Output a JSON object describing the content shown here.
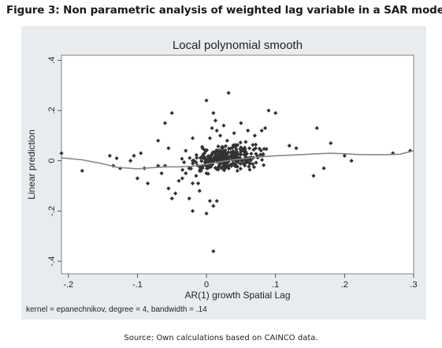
{
  "figure_caption": "Figure 3: Non parametric analysis of weighted lag variable in a SAR model",
  "source_note": "Source: Own calculations based on CAINCO data.",
  "colors": {
    "panel_bg": "#e9ecef",
    "plot_bg": "#ffffff",
    "points": "#333333",
    "smooth_line": "#888888"
  },
  "chart_data": {
    "type": "scatter",
    "title": "Local polynomial smooth",
    "xlabel": "AR(1) growth Spatial Lag",
    "ylabel": "Linear prediction",
    "note": "kernel = epanechnikov, degree = 4, bandwidth = .14",
    "xlim": [
      -0.21,
      0.3
    ],
    "ylim": [
      -0.45,
      0.42
    ],
    "x_ticks": [
      -0.2,
      -0.1,
      0,
      0.1,
      0.2,
      0.3
    ],
    "x_tick_labels": [
      "-.2",
      "-.1",
      "0",
      ".1",
      ".2",
      ".3"
    ],
    "y_ticks": [
      -0.4,
      -0.2,
      0,
      0.2,
      0.4
    ],
    "y_tick_labels": [
      "-.4",
      "-.2",
      "0",
      ".2",
      ".4"
    ],
    "grid": false,
    "legend": "none",
    "series": [
      {
        "type": "scatter",
        "points": [
          [
            -0.21,
            0.03
          ],
          [
            -0.18,
            -0.04
          ],
          [
            -0.14,
            0.02
          ],
          [
            -0.135,
            -0.02
          ],
          [
            -0.13,
            0.01
          ],
          [
            -0.125,
            -0.03
          ],
          [
            -0.11,
            0.0
          ],
          [
            -0.105,
            0.02
          ],
          [
            -0.1,
            -0.07
          ],
          [
            -0.095,
            0.03
          ],
          [
            -0.09,
            -0.03
          ],
          [
            -0.085,
            -0.09
          ],
          [
            -0.07,
            -0.02
          ],
          [
            -0.065,
            -0.05
          ],
          [
            -0.06,
            -0.02
          ],
          [
            -0.055,
            -0.11
          ],
          [
            -0.05,
            -0.15
          ],
          [
            -0.045,
            -0.13
          ],
          [
            -0.04,
            -0.08
          ],
          [
            -0.035,
            -0.07
          ],
          [
            -0.03,
            -0.05
          ],
          [
            -0.025,
            -0.03
          ],
          [
            -0.02,
            0.0
          ],
          [
            -0.015,
            -0.06
          ],
          [
            -0.012,
            -0.09
          ],
          [
            -0.01,
            -0.12
          ],
          [
            -0.008,
            -0.04
          ],
          [
            -0.005,
            -0.02
          ],
          [
            -0.003,
            0.03
          ],
          [
            0.0,
            -0.05
          ],
          [
            0.0,
            -0.21
          ],
          [
            -0.02,
            -0.2
          ],
          [
            0.005,
            -0.16
          ],
          [
            0.01,
            -0.18
          ],
          [
            0.015,
            -0.16
          ],
          [
            0.01,
            -0.36
          ],
          [
            -0.05,
            0.19
          ],
          [
            -0.06,
            0.15
          ],
          [
            -0.07,
            0.08
          ],
          [
            -0.055,
            0.05
          ],
          [
            -0.03,
            0.04
          ],
          [
            -0.02,
            0.09
          ],
          [
            0.0,
            0.24
          ],
          [
            0.032,
            0.27
          ],
          [
            0.005,
            0.09
          ],
          [
            0.008,
            0.13
          ],
          [
            0.01,
            0.19
          ],
          [
            0.013,
            0.16
          ],
          [
            0.015,
            0.12
          ],
          [
            0.02,
            0.1
          ],
          [
            0.025,
            0.14
          ],
          [
            0.03,
            0.08
          ],
          [
            0.04,
            0.11
          ],
          [
            0.05,
            0.15
          ],
          [
            0.06,
            0.12
          ],
          [
            0.07,
            0.1
          ],
          [
            0.08,
            0.12
          ],
          [
            0.085,
            0.13
          ],
          [
            0.09,
            0.2
          ],
          [
            0.1,
            0.19
          ],
          [
            0.12,
            0.06
          ],
          [
            0.13,
            0.05
          ],
          [
            0.16,
            0.13
          ],
          [
            0.18,
            0.07
          ],
          [
            0.2,
            0.02
          ],
          [
            0.21,
            0.0
          ],
          [
            0.27,
            0.03
          ],
          [
            0.295,
            0.04
          ],
          [
            0.155,
            -0.06
          ],
          [
            0.17,
            -0.03
          ],
          [
            -0.02,
            -0.09
          ],
          [
            -0.025,
            -0.15
          ]
        ]
      },
      {
        "type": "line",
        "name": "",
        "points": [
          [
            -0.21,
            0.012
          ],
          [
            -0.18,
            0.004
          ],
          [
            -0.15,
            -0.012
          ],
          [
            -0.13,
            -0.026
          ],
          [
            -0.1,
            -0.032
          ],
          [
            -0.08,
            -0.028
          ],
          [
            -0.06,
            -0.024
          ],
          [
            -0.04,
            -0.024
          ],
          [
            -0.02,
            -0.022
          ],
          [
            0.0,
            -0.014
          ],
          [
            0.02,
            -0.004
          ],
          [
            0.04,
            0.004
          ],
          [
            0.06,
            0.01
          ],
          [
            0.08,
            0.016
          ],
          [
            0.1,
            0.02
          ],
          [
            0.12,
            0.022
          ],
          [
            0.14,
            0.025
          ],
          [
            0.16,
            0.028
          ],
          [
            0.18,
            0.03
          ],
          [
            0.2,
            0.028
          ],
          [
            0.22,
            0.025
          ],
          [
            0.24,
            0.024
          ],
          [
            0.26,
            0.024
          ],
          [
            0.28,
            0.026
          ],
          [
            0.3,
            0.04
          ]
        ]
      }
    ],
    "cluster": {
      "center": [
        0.03,
        0.01
      ],
      "spread_x": 0.045,
      "spread_y": 0.05,
      "count": 300
    }
  }
}
